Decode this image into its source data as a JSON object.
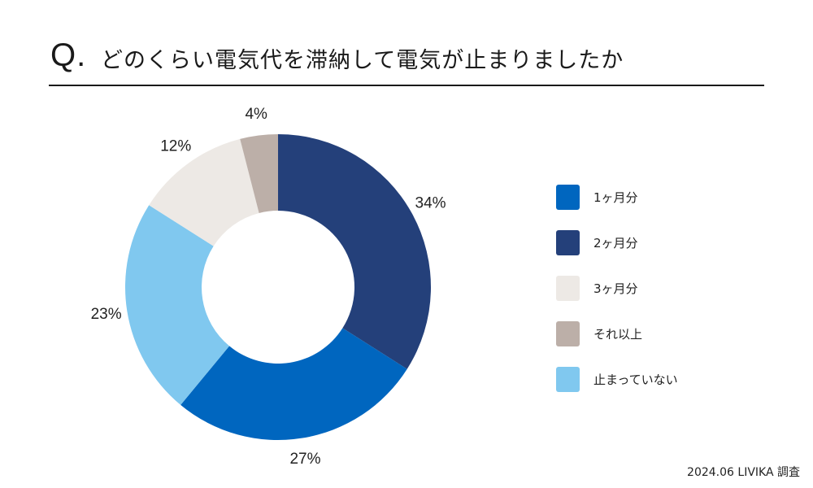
{
  "header": {
    "q_mark": "Q.",
    "question": "どのくらい電気代を滞納して電気が止まりましたか"
  },
  "chart_data": {
    "type": "pie",
    "donut": true,
    "start": "top",
    "direction": "clockwise",
    "slices": [
      {
        "name": "2ヶ月分",
        "value": 34,
        "label": "34%",
        "color": "#24407a"
      },
      {
        "name": "1ヶ月分",
        "value": 27,
        "label": "27%",
        "color": "#0066bf"
      },
      {
        "name": "止まっていない",
        "value": 23,
        "label": "23%",
        "color": "#80c8ef"
      },
      {
        "name": "3ヶ月分",
        "value": 12,
        "label": "12%",
        "color": "#ede9e5"
      },
      {
        "name": "それ以上",
        "value": 4,
        "label": "4%",
        "color": "#bcafa8"
      }
    ],
    "legend": [
      {
        "label": "1ヶ月分",
        "color": "#0066bf"
      },
      {
        "label": "2ヶ月分",
        "color": "#24407a"
      },
      {
        "label": "3ヶ月分",
        "color": "#ede9e5"
      },
      {
        "label": "それ以上",
        "color": "#bcafa8"
      },
      {
        "label": "止まっていない",
        "color": "#80c8ef"
      }
    ],
    "legend_position": "right"
  },
  "footer": {
    "source": "2024.06 LIVIKA 調査"
  }
}
